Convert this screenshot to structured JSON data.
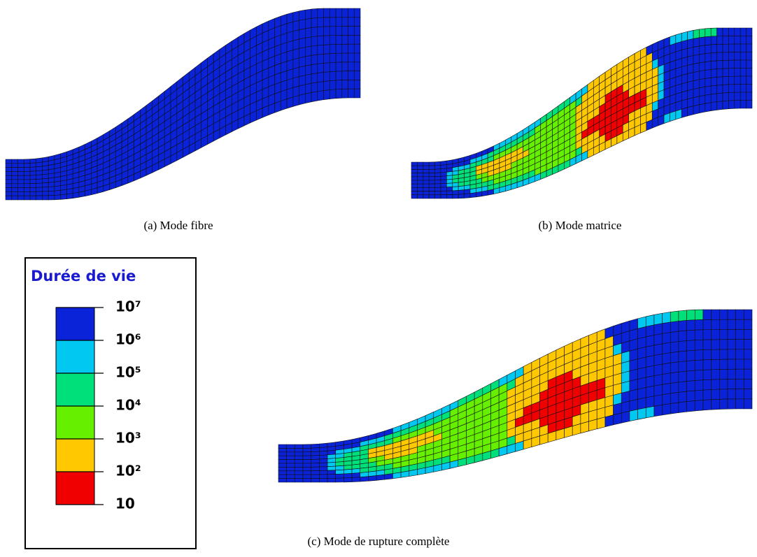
{
  "figure": {
    "panels": [
      {
        "caption": "(a) Mode fibre"
      },
      {
        "caption": "(b) Mode matrice"
      },
      {
        "caption": "(c) Mode de rupture complète"
      }
    ],
    "legend": {
      "title": "Durée de vie",
      "colors": [
        "#0a22d8",
        "#00c8f0",
        "#00e07a",
        "#66f000",
        "#ffc800",
        "#f00000"
      ],
      "labels": [
        "10⁷",
        "10⁶",
        "10⁵",
        "10⁴",
        "10³",
        "10²",
        "10"
      ]
    }
  }
}
